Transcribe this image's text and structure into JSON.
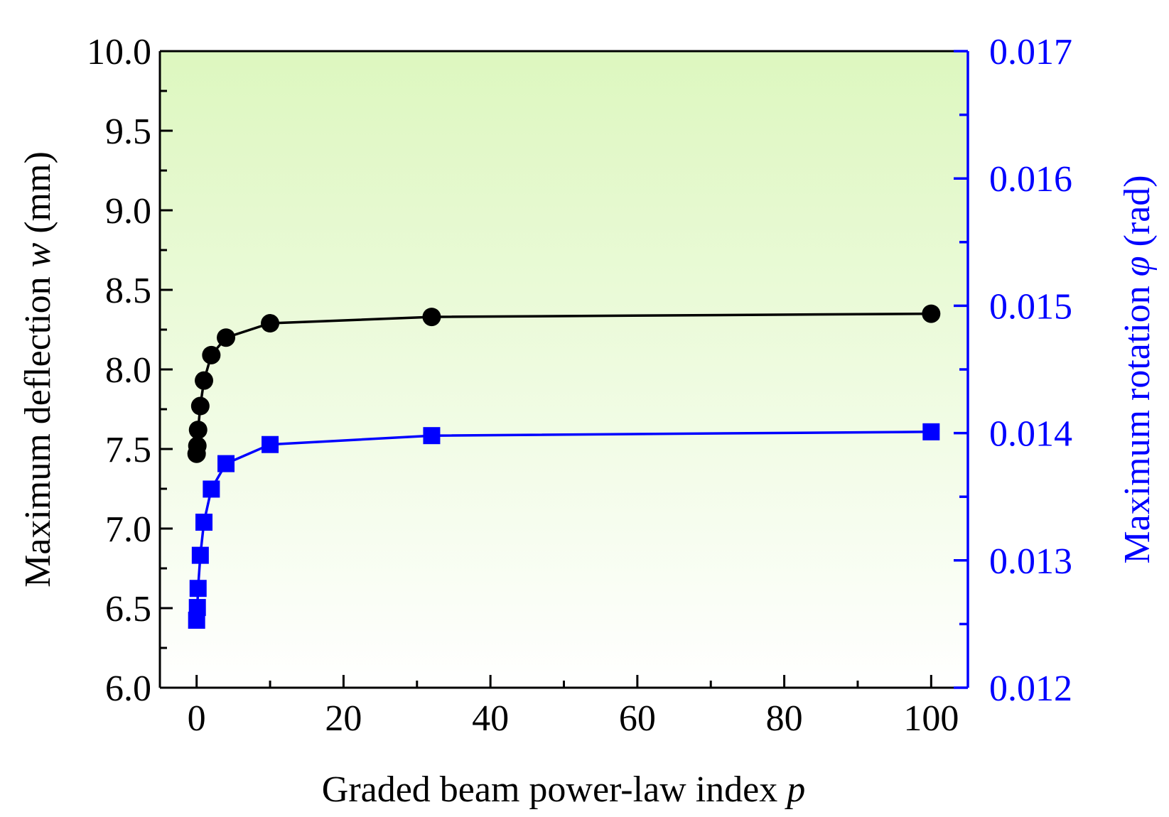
{
  "chart_data": {
    "type": "scatter",
    "title": "",
    "xlabel": "Graded beam power-law index",
    "xlabel_var": "p",
    "ylabel_prefix": "Maximum deflection",
    "ylabel_var": "w",
    "ylabel_unit": "(mm)",
    "y2label_prefix": "Maximum rotation",
    "y2label_var": "φ",
    "y2label_unit": "(rad)",
    "xlim": [
      -5,
      105
    ],
    "ylim": [
      6.0,
      10.0
    ],
    "y2lim": [
      0.012,
      0.017
    ],
    "xticks": [
      0,
      20,
      40,
      60,
      80,
      100
    ],
    "xtick_labels": [
      "0",
      "20",
      "40",
      "60",
      "80",
      "100"
    ],
    "yticks": [
      6.0,
      6.5,
      7.0,
      7.5,
      8.0,
      8.5,
      9.0,
      9.5,
      10.0
    ],
    "ytick_labels": [
      "6.0",
      "6.5",
      "7.0",
      "7.5",
      "8.0",
      "8.5",
      "9.0",
      "9.5",
      "10.0"
    ],
    "y2ticks": [
      0.012,
      0.013,
      0.014,
      0.015,
      0.016,
      0.017
    ],
    "y2tick_labels": [
      "0.012",
      "0.013",
      "0.014",
      "0.015",
      "0.016",
      "0.017"
    ],
    "series": [
      {
        "name": "Maximum deflection",
        "axis": "left",
        "marker": "circle",
        "color": "#000000",
        "x": [
          0,
          0.1,
          0.2,
          0.5,
          1,
          2,
          4,
          10,
          32,
          100
        ],
        "values": [
          7.47,
          7.52,
          7.62,
          7.77,
          7.93,
          8.09,
          8.2,
          8.29,
          8.33,
          8.35
        ]
      },
      {
        "name": "Maximum rotation",
        "axis": "right",
        "marker": "square",
        "color": "#0000ff",
        "x": [
          0,
          0.1,
          0.2,
          0.5,
          1,
          2,
          4,
          10,
          32,
          100
        ],
        "values": [
          0.01253,
          0.01263,
          0.01278,
          0.01304,
          0.0133,
          0.01356,
          0.01376,
          0.01391,
          0.01398,
          0.01401
        ]
      }
    ],
    "colors": {
      "left_axis": "#000000",
      "right_axis": "#0000ff",
      "background_top": "#ddf7bf",
      "background_bottom": "#ffffff"
    }
  }
}
